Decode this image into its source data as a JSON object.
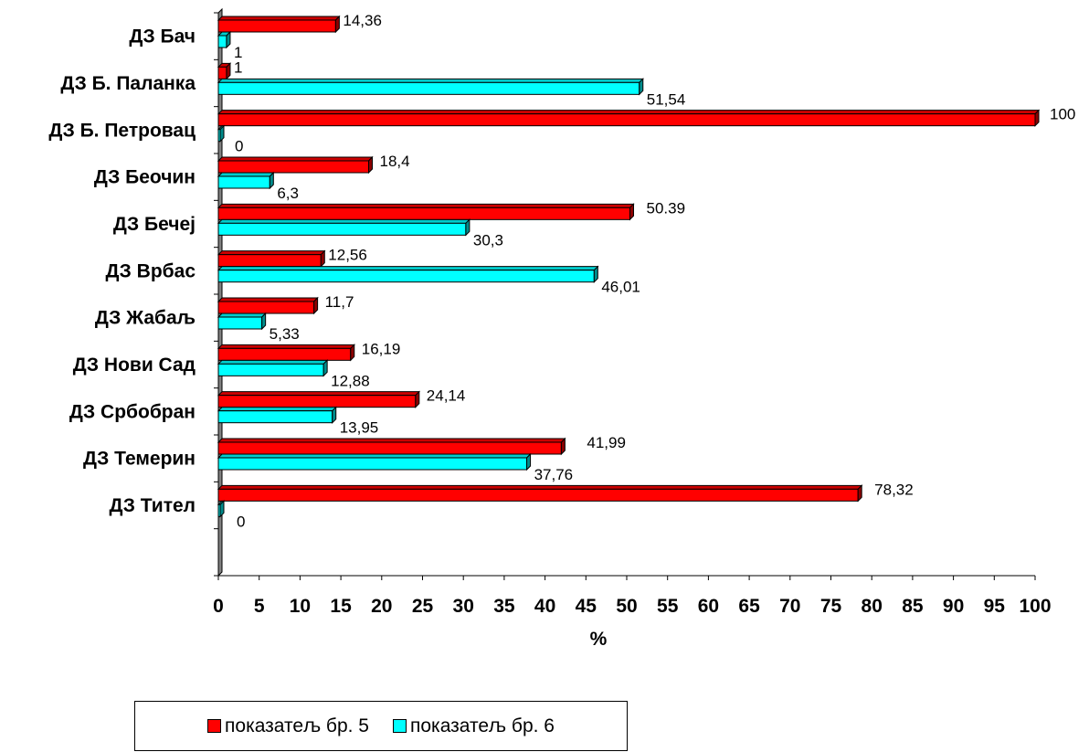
{
  "chart_data": {
    "type": "bar",
    "orientation": "horizontal",
    "categories": [
      "ДЗ Бач",
      "ДЗ Б. Паланка",
      "ДЗ Б. Петровац",
      "ДЗ Беочин",
      "ДЗ Бечеј",
      "ДЗ Врбас",
      "ДЗ Жабаљ",
      "ДЗ Нови Сад",
      "ДЗ Србобран",
      "ДЗ Темерин",
      "ДЗ Тител"
    ],
    "series": [
      {
        "name": "показатељ бр. 5",
        "color": "#ff0000",
        "values": [
          14.36,
          1,
          100,
          18.4,
          50.39,
          12.56,
          11.7,
          16.19,
          24.14,
          41.99,
          78.32
        ],
        "labels": [
          "14,36",
          "1",
          "100",
          "18,4",
          "50.39",
          "12,56",
          "11,7",
          "16,19",
          "24,14",
          "41,99",
          "78,32"
        ]
      },
      {
        "name": "показатељ бр. 6",
        "color": "#00ffff",
        "values": [
          1,
          51.54,
          0,
          6.3,
          30.3,
          46.01,
          5.33,
          12.88,
          13.95,
          37.76,
          0
        ],
        "labels": [
          "1",
          "51,54",
          "0",
          "6,3",
          "30,3",
          "46,01",
          "5,33",
          "12,88",
          "13,95",
          "37,76",
          "0"
        ]
      }
    ],
    "xlim": [
      0,
      100
    ],
    "xticks": [
      "0",
      "5",
      "10",
      "15",
      "20",
      "25",
      "30",
      "35",
      "40",
      "45",
      "50",
      "55",
      "60",
      "65",
      "70",
      "75",
      "80",
      "85",
      "90",
      "95",
      "100"
    ],
    "xlabel": "%",
    "ylabel": "",
    "title": "",
    "grid": false,
    "legend_position": "bottom-left"
  },
  "legend": {
    "items": [
      {
        "label": "показатељ бр. 5",
        "color": "#ff0000"
      },
      {
        "label": "показатељ бр. 6",
        "color": "#00ffff"
      }
    ]
  }
}
